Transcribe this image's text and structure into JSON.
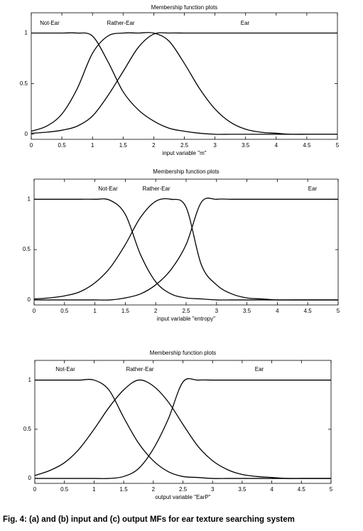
{
  "chart_data": [
    {
      "type": "line",
      "title": "Membership function plots",
      "xlabel": "input variable \"m\"",
      "x": [
        0,
        0.25,
        0.5,
        0.75,
        1,
        1.25,
        1.5,
        1.75,
        2,
        2.25,
        2.5,
        2.75,
        3,
        3.25,
        3.5,
        3.75,
        4,
        4.25,
        4.5,
        4.75,
        5
      ],
      "series": [
        {
          "name": "Not-Ear",
          "color": "#000000",
          "values": [
            1,
            1,
            1,
            1,
            0.97,
            0.72,
            0.42,
            0.24,
            0.13,
            0.06,
            0.03,
            0.01,
            0,
            0,
            0,
            0,
            0,
            0,
            0,
            0,
            0
          ]
        },
        {
          "name": "Rather-Ear",
          "color": "#000000",
          "values": [
            0.03,
            0.08,
            0.2,
            0.45,
            0.8,
            0.97,
            1,
            1,
            1,
            0.92,
            0.7,
            0.45,
            0.25,
            0.12,
            0.05,
            0.02,
            0.01,
            0,
            0,
            0,
            0
          ]
        },
        {
          "name": "Ear",
          "color": "#000000",
          "values": [
            0.01,
            0.02,
            0.04,
            0.08,
            0.18,
            0.38,
            0.62,
            0.86,
            0.99,
            1,
            1,
            1,
            1,
            1,
            1,
            1,
            1,
            1,
            1,
            1,
            1
          ]
        }
      ],
      "xlim": [
        0,
        5
      ],
      "ylim": [
        -0.05,
        1.2
      ],
      "xticks": [
        0,
        0.5,
        1,
        1.5,
        2,
        2.5,
        3,
        3.5,
        4,
        4.5,
        5
      ],
      "yticks": [
        0,
        0.5,
        1
      ]
    },
    {
      "type": "line",
      "title": "Membership function plots",
      "xlabel": "input variable \"entropy\"",
      "x": [
        0,
        0.25,
        0.5,
        0.75,
        1,
        1.25,
        1.5,
        1.75,
        2,
        2.25,
        2.5,
        2.75,
        3,
        3.25,
        3.5,
        3.75,
        4,
        4.25,
        4.5,
        4.75,
        5
      ],
      "series": [
        {
          "name": "Not-Ear",
          "color": "#000000",
          "values": [
            1,
            1,
            1,
            1,
            1,
            0.99,
            0.85,
            0.45,
            0.18,
            0.06,
            0.02,
            0.01,
            0,
            0,
            0,
            0,
            0,
            0,
            0,
            0,
            0
          ]
        },
        {
          "name": "Rather-Ear",
          "color": "#000000",
          "values": [
            0.01,
            0.02,
            0.04,
            0.08,
            0.17,
            0.32,
            0.55,
            0.82,
            0.98,
            1,
            0.92,
            0.35,
            0.15,
            0.06,
            0.02,
            0.01,
            0,
            0,
            0,
            0,
            0
          ]
        },
        {
          "name": "Ear",
          "color": "#000000",
          "values": [
            0,
            0,
            0,
            0,
            0,
            0,
            0.02,
            0.06,
            0.15,
            0.3,
            0.55,
            0.97,
            1,
            1,
            1,
            1,
            1,
            1,
            1,
            1,
            1
          ]
        }
      ],
      "xlim": [
        0,
        5
      ],
      "ylim": [
        -0.05,
        1.2
      ],
      "xticks": [
        0,
        0.5,
        1,
        1.5,
        2,
        2.5,
        3,
        3.5,
        4,
        4.5,
        5
      ],
      "yticks": [
        0,
        0.5,
        1
      ]
    },
    {
      "type": "line",
      "title": "Membership function plots",
      "xlabel": "output variable \"EarP\"",
      "x": [
        0,
        0.25,
        0.5,
        0.75,
        1,
        1.25,
        1.5,
        1.75,
        2,
        2.25,
        2.5,
        2.75,
        3,
        3.25,
        3.5,
        3.75,
        4,
        4.25,
        4.5,
        4.75,
        5
      ],
      "series": [
        {
          "name": "Not-Ear",
          "color": "#000000",
          "values": [
            1,
            1,
            1,
            1,
            1,
            0.9,
            0.62,
            0.36,
            0.18,
            0.07,
            0.02,
            0.01,
            0,
            0,
            0,
            0,
            0,
            0,
            0,
            0,
            0
          ]
        },
        {
          "name": "Rather-Ear",
          "color": "#000000",
          "values": [
            0.03,
            0.08,
            0.16,
            0.3,
            0.5,
            0.72,
            0.9,
            1,
            0.94,
            0.78,
            0.55,
            0.33,
            0.18,
            0.09,
            0.04,
            0.02,
            0.01,
            0,
            0,
            0,
            0
          ]
        },
        {
          "name": "Ear",
          "color": "#000000",
          "values": [
            0,
            0,
            0,
            0,
            0,
            0,
            0.02,
            0.1,
            0.3,
            0.6,
            0.98,
            1,
            1,
            1,
            1,
            1,
            1,
            1,
            1,
            1,
            1
          ]
        }
      ],
      "xlim": [
        0,
        5
      ],
      "ylim": [
        -0.05,
        1.2
      ],
      "xticks": [
        0,
        0.5,
        1,
        1.5,
        2,
        2.5,
        3,
        3.5,
        4,
        4.5,
        5
      ],
      "yticks": [
        0,
        0.5,
        1
      ]
    }
  ],
  "caption": "Fig. 4: (a) and (b) input and (c) output MFs for ear texture searching system"
}
